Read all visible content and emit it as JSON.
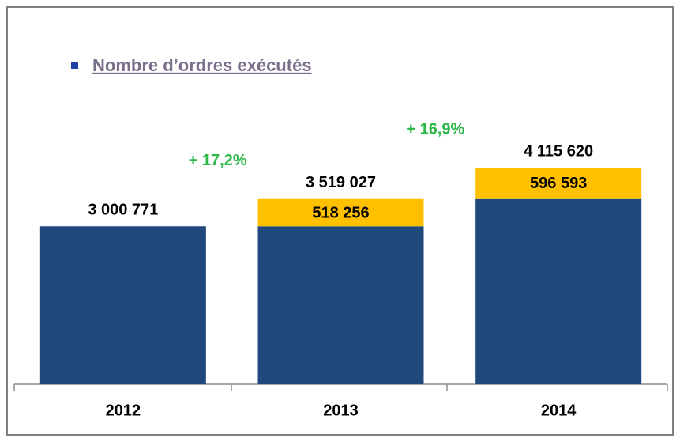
{
  "chart_data": {
    "type": "stacked_bar",
    "title": "Nombre d’ordres exécutés",
    "categories": [
      "2012",
      "2013",
      "2014"
    ],
    "series": [
      {
        "color": "#1f497d",
        "values": [
          3000771,
          3000771,
          3519027
        ]
      },
      {
        "color": "#ffc000",
        "values": [
          null,
          518256,
          596593
        ],
        "value_labels": [
          null,
          "518 256",
          "596 593"
        ]
      }
    ],
    "totals": [
      3000771,
      3519027,
      4115620
    ],
    "total_labels": [
      "3 000 771",
      "3 519 027",
      "4 115 620"
    ],
    "annotations": [
      "+ 17,2%",
      "+ 16,9%"
    ],
    "annotation_color": "#2db84a",
    "ylim": [
      0,
      6700000
    ]
  }
}
